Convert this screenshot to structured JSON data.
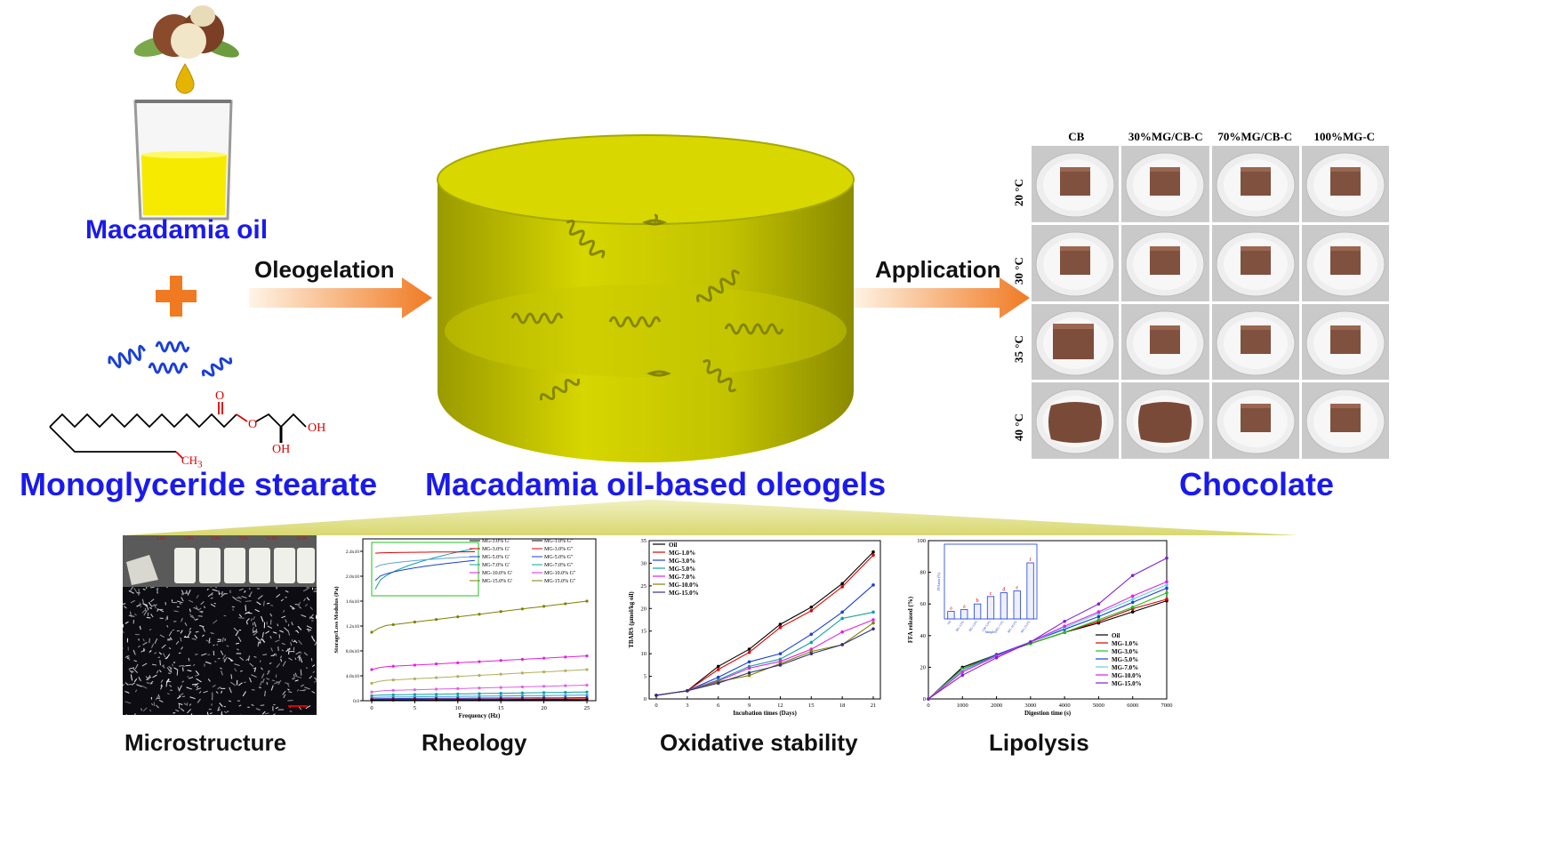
{
  "labels": {
    "oil": "Macadamia oil",
    "mgs": "Monoglyceride stearate",
    "oleogel": "Macadamia oil-based oleogels",
    "chocolate": "Chocolate",
    "oleogelation": "Oleogelation",
    "application": "Application"
  },
  "molecule": {
    "oh1": "OH",
    "oh2": "OH",
    "o": "O",
    "o2": "O",
    "ch3": "CH"
  },
  "chocolate_grid": {
    "columns": [
      "CB",
      "30%MG/CB-C",
      "70%MG/CB-C",
      "100%MG-C"
    ],
    "rows": [
      "20 °C",
      "30 °C",
      "35 °C",
      "40 °C"
    ]
  },
  "bottom_captions": [
    "Microstructure",
    "Rheology",
    "Oxidative stability",
    "Lipolysis"
  ],
  "vials": [
    "1.0%",
    "3.0%",
    "5.0%",
    "7.0%",
    "10.0%",
    "15.0%"
  ],
  "rheology": {
    "ylabel": "Storage/Loss Modulus (Pa)",
    "xlabel": "Frequency (Hz)",
    "yticks": [
      "0.0",
      "4.0x10",
      "8.0x10",
      "1.2x10",
      "1.6x10",
      "2.0x10",
      "2.4x10"
    ],
    "xticks": [
      "0",
      "5",
      "10",
      "15",
      "20",
      "25"
    ],
    "legend": [
      "MG-1.0% G'",
      "MG-1.0% G''",
      "MG-3.0% G'",
      "MG-3.0% G''",
      "MG-5.0% G'",
      "MG-5.0% G''",
      "MG-7.0% G'",
      "MG-7.0% G''",
      "MG-10.0% G'",
      "MG-10.0% G''",
      "MG-15.0% G'",
      "MG-15.0% G''"
    ]
  },
  "chart_data": [
    {
      "type": "line",
      "xlabel": "Incubation times (Days)",
      "ylabel": "TBARS (μmol/kg oil)",
      "x": [
        0,
        3,
        6,
        9,
        12,
        15,
        18,
        21
      ],
      "ylim": [
        0,
        35
      ],
      "yticks": [
        0,
        5,
        10,
        15,
        20,
        25,
        30,
        35
      ],
      "series": [
        {
          "name": "Oil",
          "color": "#000000",
          "values": [
            0.8,
            1.8,
            7.2,
            11.0,
            16.5,
            20.3,
            25.5,
            32.5
          ]
        },
        {
          "name": "MG-1.0%",
          "color": "#e00000",
          "values": [
            0.8,
            1.8,
            6.5,
            10.3,
            15.8,
            19.5,
            24.8,
            31.8
          ]
        },
        {
          "name": "MG-3.0%",
          "color": "#1a3fd8",
          "values": [
            0.8,
            1.8,
            4.8,
            8.2,
            10.0,
            14.3,
            19.2,
            25.2
          ]
        },
        {
          "name": "MG-5.0%",
          "color": "#10a0a0",
          "values": [
            0.8,
            1.8,
            4.2,
            7.2,
            8.8,
            12.5,
            17.8,
            19.2
          ]
        },
        {
          "name": "MG-7.0%",
          "color": "#e020e0",
          "values": [
            0.8,
            1.8,
            4.0,
            6.8,
            8.3,
            11.0,
            14.8,
            17.5
          ]
        },
        {
          "name": "MG-10.0%",
          "color": "#808000",
          "values": [
            0.8,
            1.8,
            3.8,
            5.2,
            7.8,
            10.5,
            12.0,
            16.8
          ]
        },
        {
          "name": "MG-15.0%",
          "color": "#303080",
          "values": [
            0.8,
            1.8,
            3.5,
            5.8,
            7.5,
            10.0,
            12.0,
            15.5
          ]
        }
      ]
    },
    {
      "type": "line",
      "xlabel": "Digestion time (s)",
      "ylabel": "FFA released (%)",
      "x": [
        0,
        1000,
        2000,
        3000,
        4000,
        5000,
        6000,
        7000
      ],
      "ylim": [
        0,
        100
      ],
      "yticks": [
        0,
        20,
        40,
        60,
        80,
        100
      ],
      "series": [
        {
          "name": "Oil",
          "color": "#000000",
          "values": [
            0,
            20,
            28,
            35,
            42,
            48,
            55,
            62
          ]
        },
        {
          "name": "MG-1.0%",
          "color": "#e00000",
          "values": [
            0,
            19,
            28,
            35,
            42,
            49,
            57,
            63
          ]
        },
        {
          "name": "MG-3.0%",
          "color": "#20c020",
          "values": [
            0,
            19,
            28,
            35,
            42,
            50,
            58,
            67
          ]
        },
        {
          "name": "MG-5.0%",
          "color": "#1a3fd8",
          "values": [
            0,
            18,
            28,
            36,
            44,
            52,
            61,
            70
          ]
        },
        {
          "name": "MG-7.0%",
          "color": "#60d0e0",
          "values": [
            0,
            18,
            27,
            36,
            45,
            54,
            63,
            72
          ]
        },
        {
          "name": "MG-10.0%",
          "color": "#e020e0",
          "values": [
            0,
            17,
            27,
            36,
            46,
            55,
            65,
            74
          ]
        },
        {
          "name": "MG-15.0%",
          "color": "#8020d0",
          "values": [
            0,
            15,
            26,
            36,
            49,
            60,
            78,
            89
          ]
        }
      ]
    },
    {
      "type": "bar",
      "ylabel": "FFAmax (%)",
      "xlabel": "Samples",
      "categories": [
        "Oil",
        "MG-1.0%",
        "MG-3.0%",
        "GM-5.0%",
        "MG-7.0%",
        "MG-10.0%",
        "MG-15.0%"
      ],
      "values": [
        64,
        65,
        68,
        72,
        74,
        75,
        90
      ],
      "letters": [
        "a",
        "a",
        "b",
        "c",
        "d",
        "e",
        "f"
      ],
      "ylim": [
        60,
        100
      ]
    }
  ]
}
